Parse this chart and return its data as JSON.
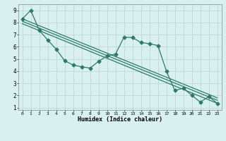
{
  "xlabel": "Humidex (Indice chaleur)",
  "bg_color": "#d8f0f0",
  "grid_color": "#c0d8d8",
  "line_color": "#2d7a6a",
  "xlim": [
    -0.5,
    23.5
  ],
  "ylim": [
    0.8,
    9.5
  ],
  "yticks": [
    1,
    2,
    3,
    4,
    5,
    6,
    7,
    8,
    9
  ],
  "xticks": [
    0,
    1,
    2,
    3,
    4,
    5,
    6,
    7,
    8,
    9,
    10,
    11,
    12,
    13,
    14,
    15,
    16,
    17,
    18,
    19,
    20,
    21,
    22,
    23
  ],
  "data_x": [
    0,
    1,
    2,
    3,
    4,
    5,
    6,
    7,
    8,
    9,
    10,
    11,
    12,
    13,
    14,
    15,
    16,
    17,
    18,
    19,
    20,
    21,
    22,
    23
  ],
  "data_y": [
    8.3,
    9.0,
    7.35,
    6.55,
    5.8,
    4.85,
    4.5,
    4.35,
    4.25,
    4.8,
    5.25,
    5.4,
    6.8,
    6.75,
    6.35,
    6.25,
    6.1,
    4.0,
    2.4,
    2.6,
    2.0,
    1.45,
    1.9,
    1.35
  ],
  "reg_lines": [
    {
      "x": [
        0,
        23
      ],
      "y": [
        8.3,
        1.8
      ]
    },
    {
      "x": [
        0,
        23
      ],
      "y": [
        8.1,
        1.6
      ]
    },
    {
      "x": [
        0,
        23
      ],
      "y": [
        7.9,
        1.35
      ]
    }
  ],
  "markersize": 2.5,
  "linewidth": 0.9
}
